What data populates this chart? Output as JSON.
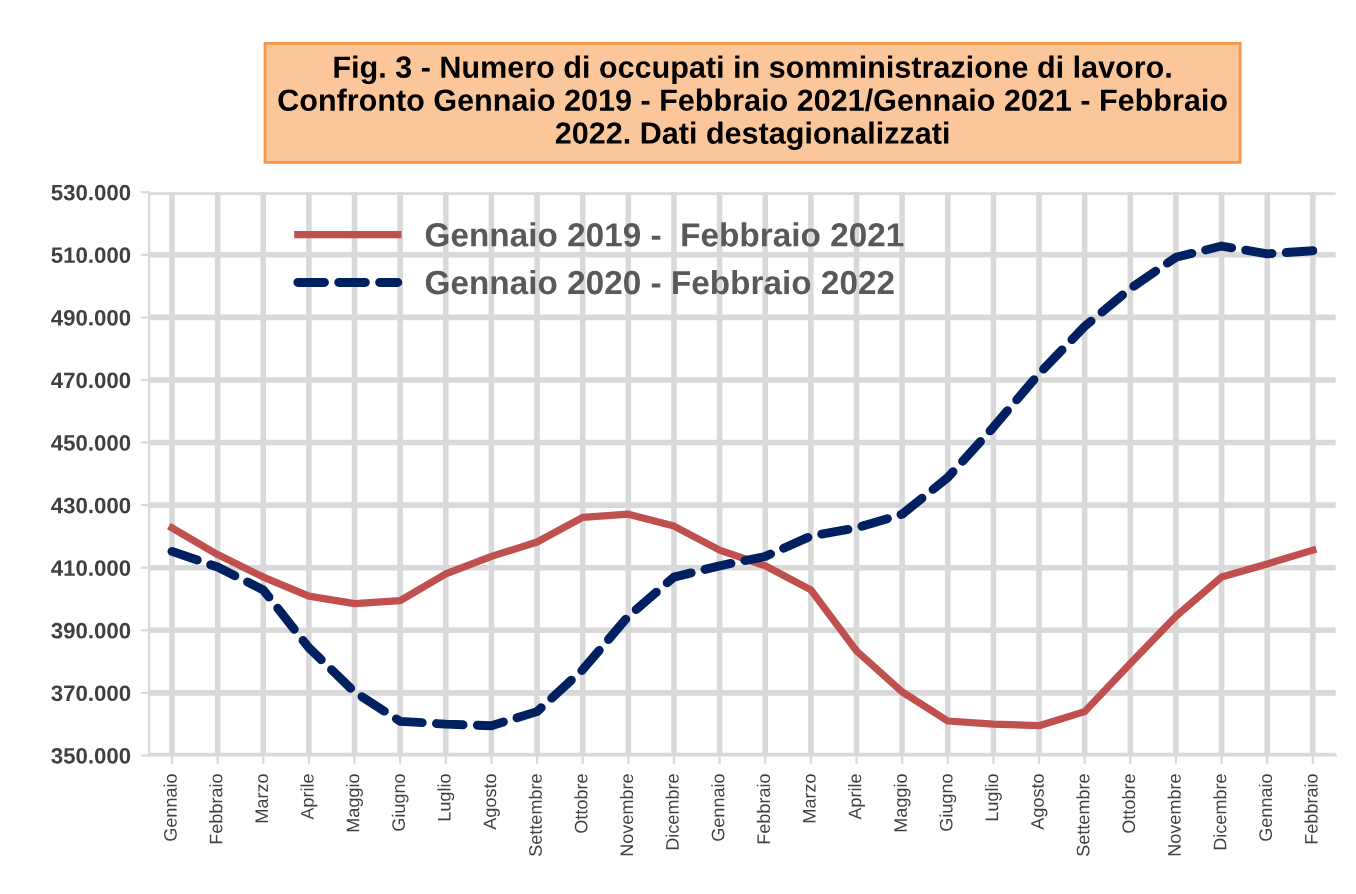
{
  "chart_data": {
    "type": "line",
    "title": "Fig. 3 - Numero di occupati in somministrazione di lavoro.\nConfronto Gennaio 2019 - Febbraio 2021/Gennaio 2021 - Febbraio\n2022. Dati destagionalizzati",
    "categories": [
      "Gennaio",
      "Febbraio",
      "Marzo",
      "Aprile",
      "Maggio",
      "Giugno",
      "Luglio",
      "Agosto",
      "Settembre",
      "Ottobre",
      "Novembre",
      "Dicembre",
      "Gennaio",
      "Febbraio",
      "Marzo",
      "Aprile",
      "Maggio",
      "Giugno",
      "Luglio",
      "Agosto",
      "Settembre",
      "Ottobre",
      "Novembre",
      "Dicembre",
      "Gennaio",
      "Febbraio"
    ],
    "series": [
      {
        "name": "Gennaio 2019 -  Febbraio 2021",
        "color": "#c0504d",
        "line_style": "solid",
        "values": [
          422700,
          414200,
          407000,
          400900,
          398500,
          399500,
          408000,
          413600,
          418200,
          426100,
          427100,
          423300,
          415600,
          410600,
          402900,
          383400,
          370300,
          361000,
          360000,
          359500,
          364000,
          379400,
          394500,
          407000,
          411200,
          415600
        ]
      },
      {
        "name": "Gennaio 2020 - Febbraio 2022",
        "color": "#002060",
        "line_style": "dashed",
        "values": [
          415200,
          410200,
          402900,
          384400,
          370300,
          360900,
          360000,
          359500,
          364000,
          377400,
          394500,
          407000,
          410600,
          413600,
          420100,
          422700,
          427100,
          438800,
          454900,
          472000,
          487100,
          499200,
          509200,
          512800,
          510300,
          511300
        ]
      }
    ],
    "ylim": [
      350000,
      530000
    ],
    "yticks": [
      {
        "value": 350000,
        "label": "350.000"
      },
      {
        "value": 370000,
        "label": "370.000"
      },
      {
        "value": 390000,
        "label": "390.000"
      },
      {
        "value": 410000,
        "label": "410.000"
      },
      {
        "value": 430000,
        "label": "430.000"
      },
      {
        "value": 450000,
        "label": "450.000"
      },
      {
        "value": 470000,
        "label": "470.000"
      },
      {
        "value": 490000,
        "label": "490.000"
      },
      {
        "value": 510000,
        "label": "510.000"
      },
      {
        "value": 530000,
        "label": "530.000"
      }
    ],
    "grid": true,
    "legend": "top left",
    "marker": "none"
  }
}
